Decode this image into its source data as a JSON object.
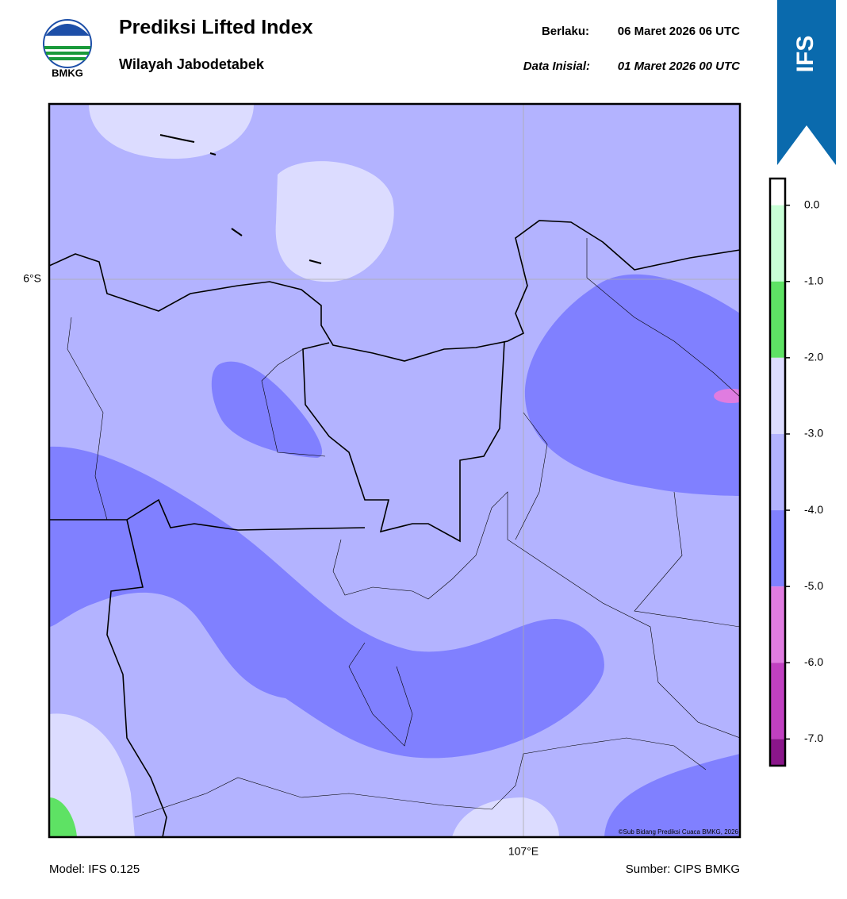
{
  "header": {
    "logo_text": "BMKG",
    "title": "Prediksi Lifted Index",
    "subtitle": "Wilayah Jabodetabek",
    "valid_label": "Berlaku:",
    "valid_time": "06 Maret 2026 06 UTC",
    "init_label": "Data Inisial:",
    "init_time": "01 Maret 2026 00 UTC",
    "badge": "IFS"
  },
  "map": {
    "lat_label": "6°S",
    "lon_label": "107°E",
    "copyright": "©Sub Bidang Prediksi Cuaca BMKG, 2026"
  },
  "colorbar": {
    "lim": [
      -7.35,
      0.35
    ],
    "ticks": [
      {
        "value": 0,
        "label": "0.0"
      },
      {
        "value": -1,
        "label": "-1.0"
      },
      {
        "value": -2,
        "label": "-2.0"
      },
      {
        "value": -3,
        "label": "-3.0"
      },
      {
        "value": -4,
        "label": "-4.0"
      },
      {
        "value": -5,
        "label": "-5.0"
      },
      {
        "value": -6,
        "label": "-6.0"
      },
      {
        "value": -7,
        "label": "-7.0"
      }
    ],
    "bins": [
      {
        "from": 0.35,
        "to": 0,
        "color": "#ffffff"
      },
      {
        "from": 0,
        "to": -1,
        "color": "#c8ffd6"
      },
      {
        "from": -1,
        "to": -2,
        "color": "#5ee264"
      },
      {
        "from": -2,
        "to": -3,
        "color": "#dcdcff"
      },
      {
        "from": -3,
        "to": -4,
        "color": "#b3b3ff"
      },
      {
        "from": -4,
        "to": -5,
        "color": "#8080ff"
      },
      {
        "from": -5,
        "to": -6,
        "color": "#e07ce0"
      },
      {
        "from": -6,
        "to": -7,
        "color": "#c040c0"
      },
      {
        "from": -7,
        "to": -7.35,
        "color": "#8a168a"
      }
    ]
  },
  "footer": {
    "model": "Model: IFS 0.125",
    "source": "Sumber: CIPS BMKG"
  }
}
